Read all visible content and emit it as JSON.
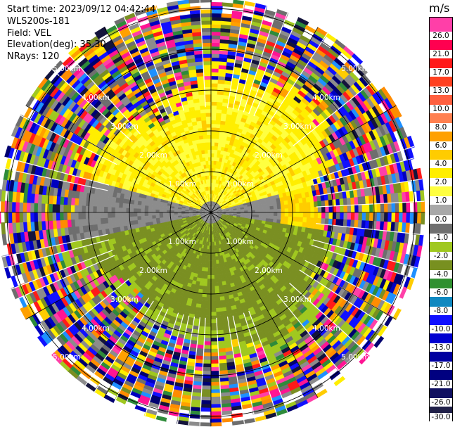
{
  "info": {
    "start_time": "Start time: 2023/09/12 04:42:44",
    "instrument": "WLS200s-181",
    "field": "Field: VEL",
    "elevation": "Elevation(deg): 35.30",
    "nrays": "NRays: 120"
  },
  "colorbar": {
    "unit": "m/s",
    "levels": [
      "26.0",
      "21.0",
      "17.0",
      "13.0",
      "10.0",
      "8.0",
      "6.0",
      "4.0",
      "2.0",
      "1.0",
      "0.0",
      "-1.0",
      "-2.0",
      "-4.0",
      "-6.0",
      "-8.0",
      "-10.0",
      "-13.0",
      "-17.0",
      "-21.0",
      "-26.0",
      "-30.0"
    ],
    "colors": [
      "#ff3fa8",
      "#ff0050",
      "#ff1a1a",
      "#ff4020",
      "#ff6040",
      "#ff8050",
      "#ffa000",
      "#ffcc00",
      "#ffee00",
      "#ffff40",
      "#a8a8a8",
      "#707070",
      "#a0c820",
      "#789020",
      "#309030",
      "#1088c0",
      "#1010ff",
      "#0000d0",
      "#0000a0",
      "#000080",
      "#101060",
      "#202048"
    ]
  },
  "rings": {
    "labels": [
      "1.00km",
      "2.00km",
      "3.00km",
      "4.00km",
      "5.00km"
    ]
  }
}
